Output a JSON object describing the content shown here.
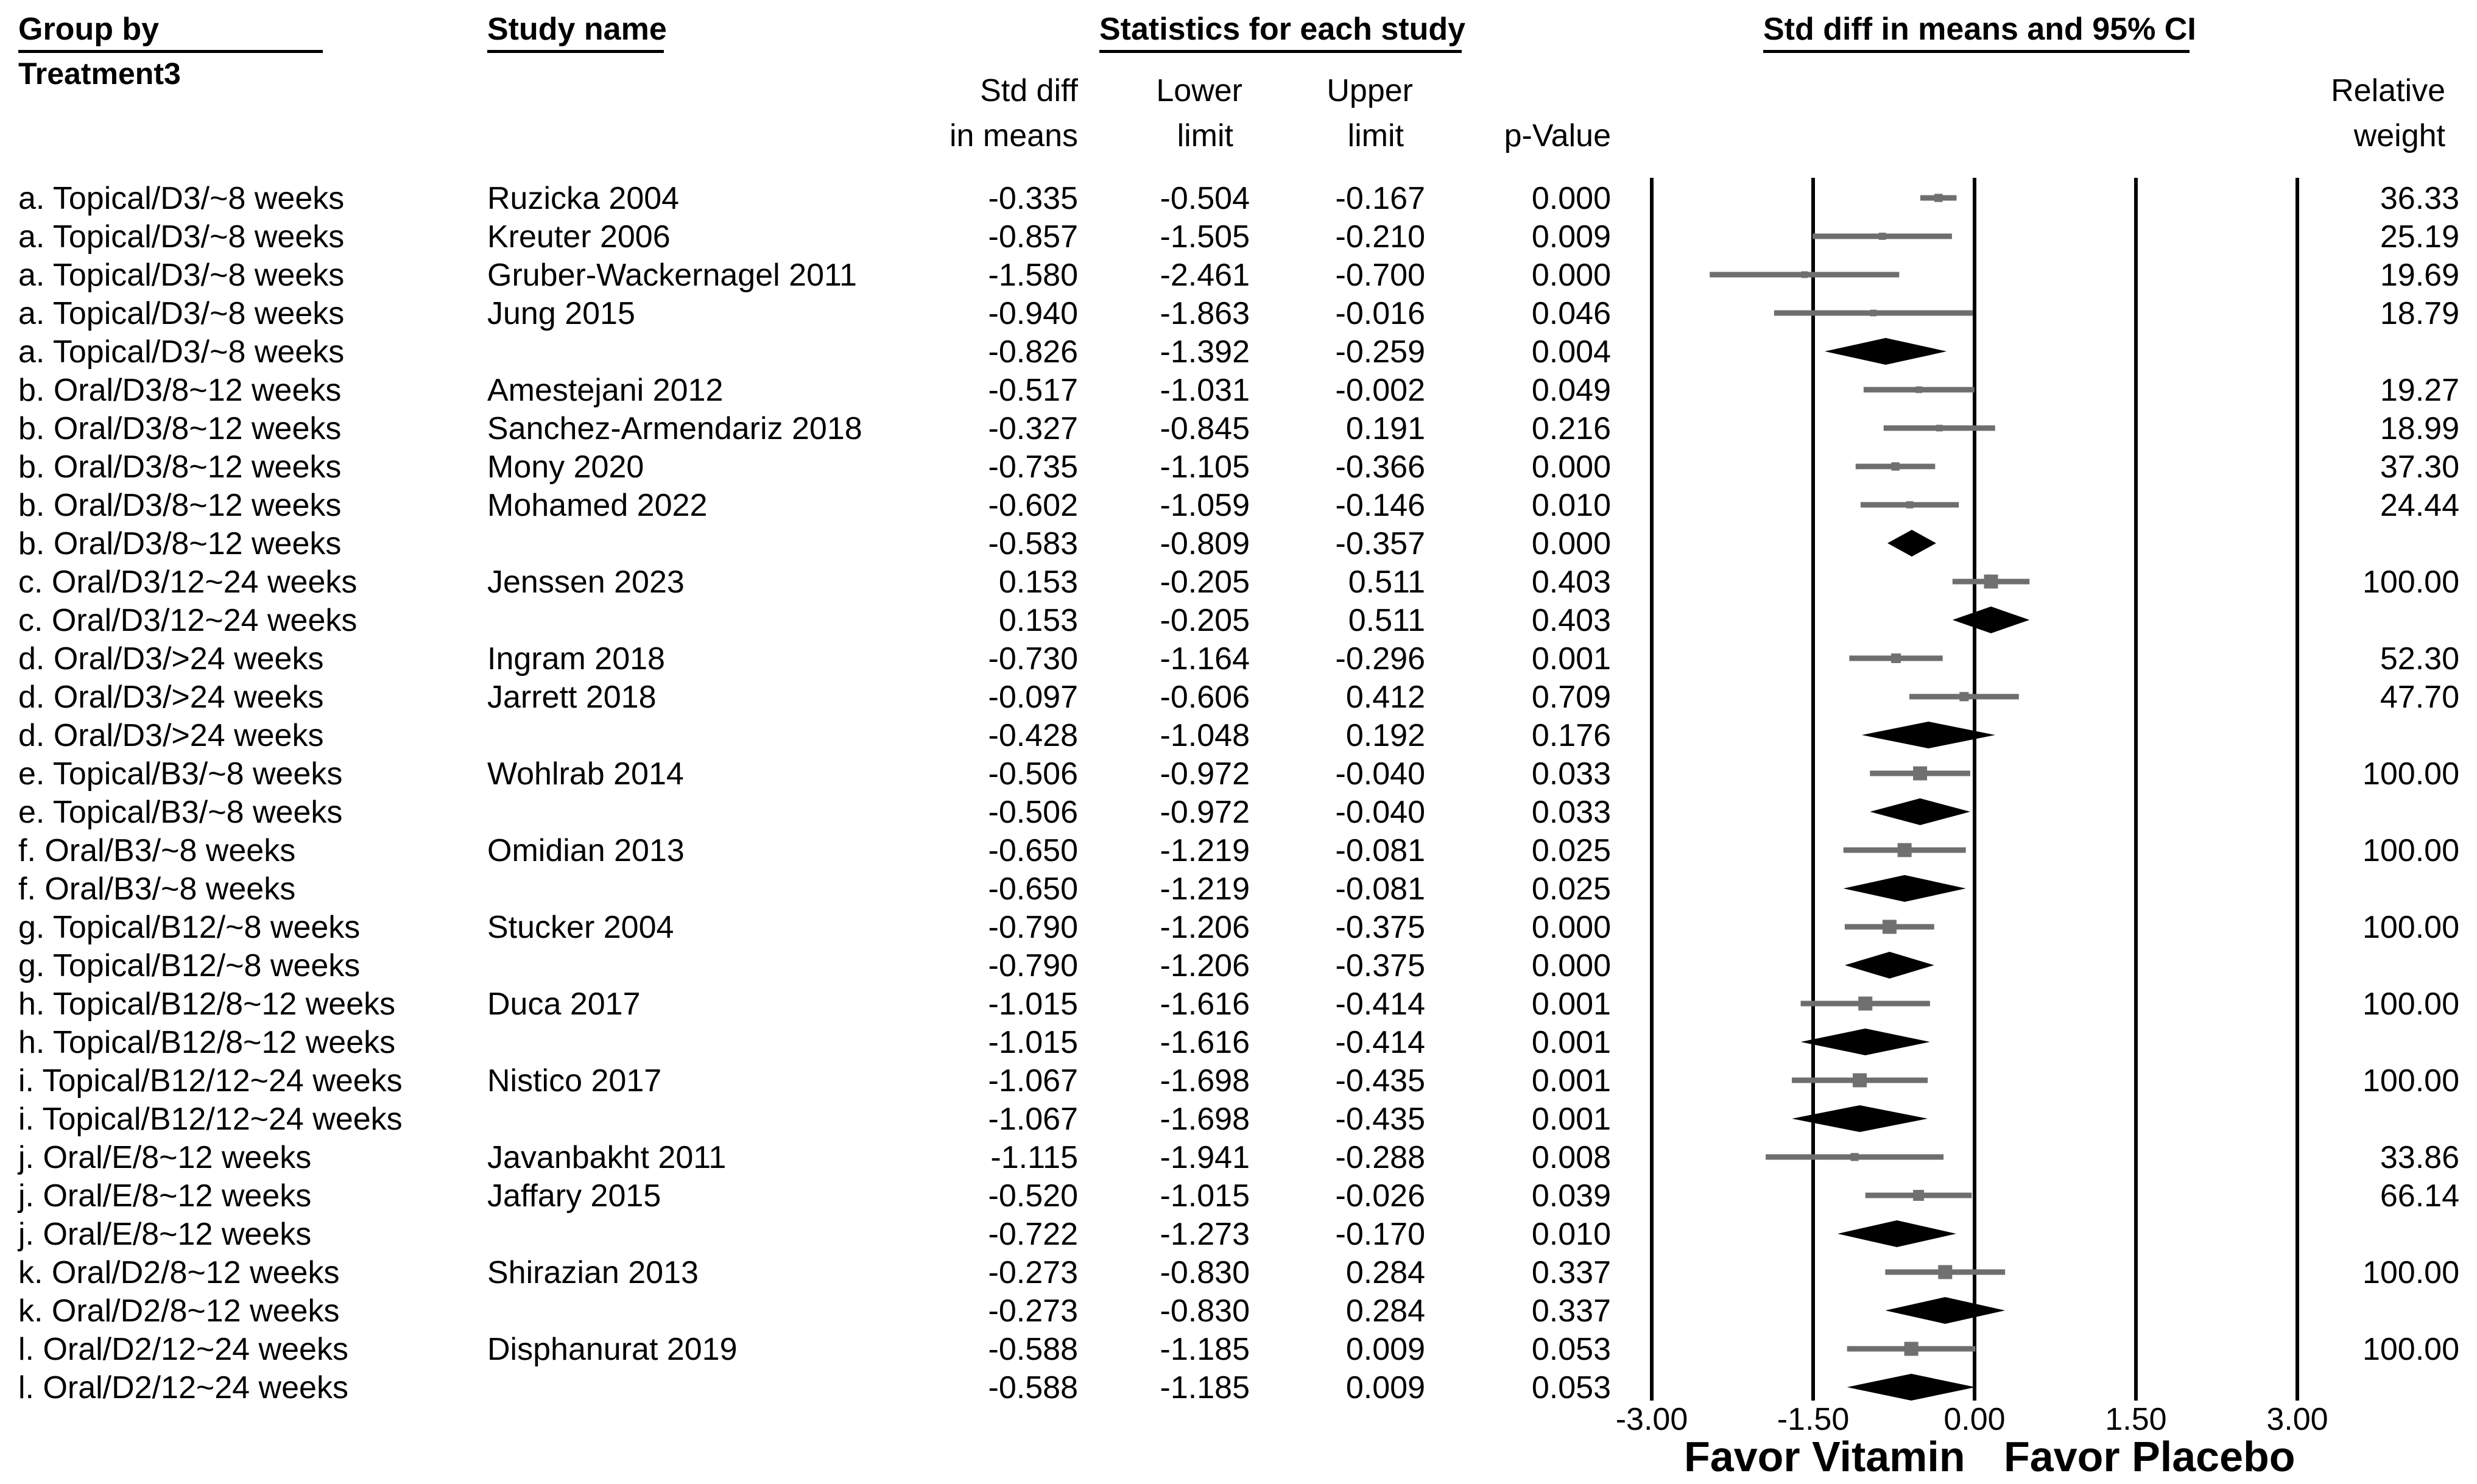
{
  "headers": {
    "group_by": "Group by",
    "treatment": "Treatment3",
    "study_name": "Study name",
    "stats": "Statistics for each study",
    "ci": "Std diff in means and 95% CI"
  },
  "columns": {
    "std_diff_1": "Std diff",
    "std_diff_2": "in means",
    "lower_1": "Lower",
    "lower_2": "limit",
    "upper_1": "Upper",
    "upper_2": "limit",
    "pvalue": "p-Value",
    "weight_1": "Relative",
    "weight_2": "weight"
  },
  "favor": {
    "left": "Favor Vitamin",
    "right": "Favor Placebo"
  },
  "colors": {
    "ci_line": "#6e6e6e",
    "marker": "#707070",
    "diamond": "#000000",
    "axis": "#000000"
  },
  "chart_data": {
    "type": "forest",
    "x_axis": {
      "ticks": [
        "-3.00",
        "-1.50",
        "0.00",
        "1.50",
        "3.00"
      ],
      "range": [
        -3,
        3
      ]
    },
    "rows": [
      {
        "group": "a. Topical/D3/~8 weeks",
        "study": "Ruzicka 2004",
        "smd": "-0.335",
        "lower": "-0.504",
        "upper": "-0.167",
        "p": "0.000",
        "weight": "36.33",
        "kind": "study"
      },
      {
        "group": "a. Topical/D3/~8 weeks",
        "study": "Kreuter 2006",
        "smd": "-0.857",
        "lower": "-1.505",
        "upper": "-0.210",
        "p": "0.009",
        "weight": "25.19",
        "kind": "study"
      },
      {
        "group": "a. Topical/D3/~8 weeks",
        "study": "Gruber-Wackernagel 2011",
        "smd": "-1.580",
        "lower": "-2.461",
        "upper": "-0.700",
        "p": "0.000",
        "weight": "19.69",
        "kind": "study"
      },
      {
        "group": "a. Topical/D3/~8 weeks",
        "study": "Jung 2015",
        "smd": "-0.940",
        "lower": "-1.863",
        "upper": "-0.016",
        "p": "0.046",
        "weight": "18.79",
        "kind": "study"
      },
      {
        "group": "a. Topical/D3/~8 weeks",
        "study": "",
        "smd": "-0.826",
        "lower": "-1.392",
        "upper": "-0.259",
        "p": "0.004",
        "weight": "",
        "kind": "summary"
      },
      {
        "group": "b. Oral/D3/8~12 weeks",
        "study": "Amestejani 2012",
        "smd": "-0.517",
        "lower": "-1.031",
        "upper": "-0.002",
        "p": "0.049",
        "weight": "19.27",
        "kind": "study"
      },
      {
        "group": "b. Oral/D3/8~12 weeks",
        "study": "Sanchez-Armendariz 2018",
        "smd": "-0.327",
        "lower": "-0.845",
        "upper": "0.191",
        "p": "0.216",
        "weight": "18.99",
        "kind": "study"
      },
      {
        "group": "b. Oral/D3/8~12 weeks",
        "study": "Mony 2020",
        "smd": "-0.735",
        "lower": "-1.105",
        "upper": "-0.366",
        "p": "0.000",
        "weight": "37.30",
        "kind": "study"
      },
      {
        "group": "b. Oral/D3/8~12 weeks",
        "study": "Mohamed 2022",
        "smd": "-0.602",
        "lower": "-1.059",
        "upper": "-0.146",
        "p": "0.010",
        "weight": "24.44",
        "kind": "study"
      },
      {
        "group": "b. Oral/D3/8~12 weeks",
        "study": "",
        "smd": "-0.583",
        "lower": "-0.809",
        "upper": "-0.357",
        "p": "0.000",
        "weight": "",
        "kind": "summary"
      },
      {
        "group": "c. Oral/D3/12~24 weeks",
        "study": "Jenssen 2023",
        "smd": "0.153",
        "lower": "-0.205",
        "upper": "0.511",
        "p": "0.403",
        "weight": "100.00",
        "kind": "study"
      },
      {
        "group": "c. Oral/D3/12~24 weeks",
        "study": "",
        "smd": "0.153",
        "lower": "-0.205",
        "upper": "0.511",
        "p": "0.403",
        "weight": "",
        "kind": "summary"
      },
      {
        "group": "d. Oral/D3/>24 weeks",
        "study": "Ingram 2018",
        "smd": "-0.730",
        "lower": "-1.164",
        "upper": "-0.296",
        "p": "0.001",
        "weight": "52.30",
        "kind": "study"
      },
      {
        "group": "d. Oral/D3/>24 weeks",
        "study": "Jarrett 2018",
        "smd": "-0.097",
        "lower": "-0.606",
        "upper": "0.412",
        "p": "0.709",
        "weight": "47.70",
        "kind": "study"
      },
      {
        "group": "d. Oral/D3/>24 weeks",
        "study": "",
        "smd": "-0.428",
        "lower": "-1.048",
        "upper": "0.192",
        "p": "0.176",
        "weight": "",
        "kind": "summary"
      },
      {
        "group": "e. Topical/B3/~8 weeks",
        "study": "Wohlrab 2014",
        "smd": "-0.506",
        "lower": "-0.972",
        "upper": "-0.040",
        "p": "0.033",
        "weight": "100.00",
        "kind": "study"
      },
      {
        "group": "e. Topical/B3/~8 weeks",
        "study": "",
        "smd": "-0.506",
        "lower": "-0.972",
        "upper": "-0.040",
        "p": "0.033",
        "weight": "",
        "kind": "summary"
      },
      {
        "group": "f. Oral/B3/~8 weeks",
        "study": "Omidian 2013",
        "smd": "-0.650",
        "lower": "-1.219",
        "upper": "-0.081",
        "p": "0.025",
        "weight": "100.00",
        "kind": "study"
      },
      {
        "group": "f. Oral/B3/~8 weeks",
        "study": "",
        "smd": "-0.650",
        "lower": "-1.219",
        "upper": "-0.081",
        "p": "0.025",
        "weight": "",
        "kind": "summary"
      },
      {
        "group": "g. Topical/B12/~8 weeks",
        "study": "Stucker 2004",
        "smd": "-0.790",
        "lower": "-1.206",
        "upper": "-0.375",
        "p": "0.000",
        "weight": "100.00",
        "kind": "study"
      },
      {
        "group": "g. Topical/B12/~8 weeks",
        "study": "",
        "smd": "-0.790",
        "lower": "-1.206",
        "upper": "-0.375",
        "p": "0.000",
        "weight": "",
        "kind": "summary"
      },
      {
        "group": "h. Topical/B12/8~12 weeks",
        "study": "Duca 2017",
        "smd": "-1.015",
        "lower": "-1.616",
        "upper": "-0.414",
        "p": "0.001",
        "weight": "100.00",
        "kind": "study"
      },
      {
        "group": "h. Topical/B12/8~12 weeks",
        "study": "",
        "smd": "-1.015",
        "lower": "-1.616",
        "upper": "-0.414",
        "p": "0.001",
        "weight": "",
        "kind": "summary"
      },
      {
        "group": "i. Topical/B12/12~24 weeks",
        "study": "Nistico 2017",
        "smd": "-1.067",
        "lower": "-1.698",
        "upper": "-0.435",
        "p": "0.001",
        "weight": "100.00",
        "kind": "study"
      },
      {
        "group": "i. Topical/B12/12~24 weeks",
        "study": "",
        "smd": "-1.067",
        "lower": "-1.698",
        "upper": "-0.435",
        "p": "0.001",
        "weight": "",
        "kind": "summary"
      },
      {
        "group": "j. Oral/E/8~12 weeks",
        "study": "Javanbakht 2011",
        "smd": "-1.115",
        "lower": "-1.941",
        "upper": "-0.288",
        "p": "0.008",
        "weight": "33.86",
        "kind": "study"
      },
      {
        "group": "j. Oral/E/8~12 weeks",
        "study": "Jaffary 2015",
        "smd": "-0.520",
        "lower": "-1.015",
        "upper": "-0.026",
        "p": "0.039",
        "weight": "66.14",
        "kind": "study"
      },
      {
        "group": "j. Oral/E/8~12 weeks",
        "study": "",
        "smd": "-0.722",
        "lower": "-1.273",
        "upper": "-0.170",
        "p": "0.010",
        "weight": "",
        "kind": "summary"
      },
      {
        "group": "k. Oral/D2/8~12 weeks",
        "study": "Shirazian 2013",
        "smd": "-0.273",
        "lower": "-0.830",
        "upper": "0.284",
        "p": "0.337",
        "weight": "100.00",
        "kind": "study"
      },
      {
        "group": "k. Oral/D2/8~12 weeks",
        "study": "",
        "smd": "-0.273",
        "lower": "-0.830",
        "upper": "0.284",
        "p": "0.337",
        "weight": "",
        "kind": "summary"
      },
      {
        "group": "l. Oral/D2/12~24 weeks",
        "study": "Disphanurat 2019",
        "smd": "-0.588",
        "lower": "-1.185",
        "upper": "0.009",
        "p": "0.053",
        "weight": "100.00",
        "kind": "study"
      },
      {
        "group": "l. Oral/D2/12~24 weeks",
        "study": "",
        "smd": "-0.588",
        "lower": "-1.185",
        "upper": "0.009",
        "p": "0.053",
        "weight": "",
        "kind": "summary"
      }
    ]
  }
}
